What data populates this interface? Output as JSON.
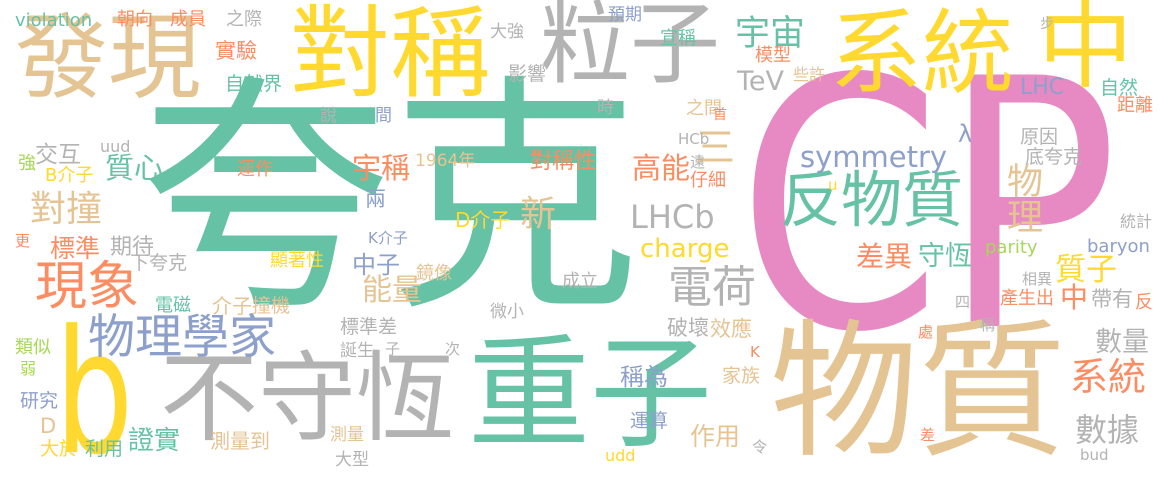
{
  "words": [
    {
      "text": "夸克",
      "color": "#66c2a5"
    },
    {
      "text": "CP",
      "color": "#e78ac3"
    },
    {
      "text": "物質",
      "color": "#e5c494"
    },
    {
      "text": "重子",
      "color": "#66c2a5"
    },
    {
      "text": "不守恆",
      "color": "#b3b3b3"
    },
    {
      "text": "b",
      "color": "#ffd92f"
    },
    {
      "text": "發現",
      "color": "#e5c494"
    },
    {
      "text": "對稱",
      "color": "#ffd92f"
    },
    {
      "text": "粒子",
      "color": "#b3b3b3"
    },
    {
      "text": "系統",
      "color": "#ffd92f"
    },
    {
      "text": "中",
      "color": "#ffd92f"
    },
    {
      "text": "反物質",
      "color": "#66c2a5"
    },
    {
      "text": "現象",
      "color": "#fc8d62"
    },
    {
      "text": "物理學家",
      "color": "#8da0cb"
    },
    {
      "text": "電荷",
      "color": "#b3b3b3"
    },
    {
      "text": "symmetry",
      "color": "#8da0cb"
    },
    {
      "text": "LHCb",
      "color": "#b3b3b3"
    },
    {
      "text": "charge",
      "color": "#ffd92f"
    },
    {
      "text": "TeV",
      "color": "#b3b3b3"
    },
    {
      "text": "宇宙",
      "color": "#66c2a5"
    },
    {
      "text": "對撞",
      "color": "#e5c494"
    },
    {
      "text": "交互",
      "color": "#b3b3b3"
    },
    {
      "text": "強",
      "color": "#a6d854"
    },
    {
      "text": "B介子",
      "color": "#ffd92f"
    },
    {
      "text": "質心",
      "color": "#66c2a5"
    },
    {
      "text": "標準",
      "color": "#fc8d62"
    },
    {
      "text": "期待",
      "color": "#b3b3b3"
    },
    {
      "text": "更",
      "color": "#fc8d62"
    },
    {
      "text": "下夸克",
      "color": "#b3b3b3"
    },
    {
      "text": "運作",
      "color": "#fc8d62"
    },
    {
      "text": "宇稱",
      "color": "#fc8d62"
    },
    {
      "text": "1964年",
      "color": "#e5c494"
    },
    {
      "text": "對稱性",
      "color": "#fc8d62"
    },
    {
      "text": "高能",
      "color": "#fc8d62"
    },
    {
      "text": "三",
      "color": "#e5c494"
    },
    {
      "text": "仔細",
      "color": "#fc8d62"
    },
    {
      "text": "物理",
      "color": "#e5c494"
    },
    {
      "text": "新",
      "color": "#e5c494"
    },
    {
      "text": "兩",
      "color": "#8da0cb"
    },
    {
      "text": "K介子",
      "color": "#8da0cb"
    },
    {
      "text": "中子",
      "color": "#8da0cb"
    },
    {
      "text": "能量",
      "color": "#e5c494"
    },
    {
      "text": "鏡像",
      "color": "#e5c494"
    },
    {
      "text": "介子",
      "color": "#e5c494"
    },
    {
      "text": "撞機",
      "color": "#e5c494"
    },
    {
      "text": "電磁",
      "color": "#66c2a5"
    },
    {
      "text": "D介子",
      "color": "#ffd92f"
    },
    {
      "text": "顯著性",
      "color": "#ffd92f"
    },
    {
      "text": "成立",
      "color": "#b3b3b3"
    },
    {
      "text": "守恆",
      "color": "#66c2a5"
    },
    {
      "text": "差異",
      "color": "#fc8d62"
    },
    {
      "text": "質子",
      "color": "#ffd92f"
    },
    {
      "text": "中",
      "color": "#fc8d62"
    },
    {
      "text": "帶有",
      "color": "#b3b3b3"
    },
    {
      "text": "反",
      "color": "#fc8d62"
    },
    {
      "text": "產生出",
      "color": "#fc8d62"
    },
    {
      "text": "相異",
      "color": "#b3b3b3"
    },
    {
      "text": "parity",
      "color": "#a6d854"
    },
    {
      "text": "baryon",
      "color": "#8da0cb"
    },
    {
      "text": "統計",
      "color": "#b3b3b3"
    },
    {
      "text": "底夸克",
      "color": "#b3b3b3"
    },
    {
      "text": "原因",
      "color": "#b3b3b3"
    },
    {
      "text": "距離",
      "color": "#fc8d62"
    },
    {
      "text": "自然",
      "color": "#66c2a5"
    },
    {
      "text": "λ",
      "color": "#8da0cb"
    },
    {
      "text": "LHC",
      "color": "#8da0cb"
    },
    {
      "text": "步",
      "color": "#b3b3b3"
    },
    {
      "text": "預期",
      "color": "#8da0cb"
    },
    {
      "text": "之際",
      "color": "#b3b3b3"
    },
    {
      "text": "成員",
      "color": "#fc8d62"
    },
    {
      "text": "朝向",
      "color": "#fc8d62"
    },
    {
      "text": "violation",
      "color": "#66c2a5"
    },
    {
      "text": "大強",
      "color": "#b3b3b3"
    },
    {
      "text": "宣稱",
      "color": "#66c2a5"
    },
    {
      "text": "模型",
      "color": "#fc8d62"
    },
    {
      "text": "些許",
      "color": "#e5c494"
    },
    {
      "text": "實驗",
      "color": "#fc8d62"
    },
    {
      "text": "自然界",
      "color": "#66c2a5"
    },
    {
      "text": "影響",
      "color": "#b3b3b3"
    },
    {
      "text": "之間",
      "color": "#e5c494"
    },
    {
      "text": "首",
      "color": "#fc8d62"
    },
    {
      "text": "時",
      "color": "#b3b3b3"
    },
    {
      "text": "HCb",
      "color": "#b3b3b3"
    },
    {
      "text": "遠",
      "color": "#b3b3b3"
    },
    {
      "text": "說",
      "color": "#b3b3b3"
    },
    {
      "text": "間",
      "color": "#8da0cb"
    },
    {
      "text": "uud",
      "color": "#b3b3b3"
    },
    {
      "text": "u",
      "color": "#ffd92f"
    },
    {
      "text": "四",
      "color": "#b3b3b3"
    },
    {
      "text": "稱",
      "color": "#b3b3b3"
    },
    {
      "text": "處",
      "color": "#fc8d62"
    },
    {
      "text": "K",
      "color": "#fc8d62"
    },
    {
      "text": "效應",
      "color": "#e5c494"
    },
    {
      "text": "破壞",
      "color": "#b3b3b3"
    },
    {
      "text": "微小",
      "color": "#b3b3b3"
    },
    {
      "text": "標準差",
      "color": "#b3b3b3"
    },
    {
      "text": "誕生",
      "color": "#b3b3b3"
    },
    {
      "text": "子",
      "color": "#b3b3b3"
    },
    {
      "text": "次",
      "color": "#b3b3b3"
    },
    {
      "text": "稱為",
      "color": "#8da0cb"
    },
    {
      "text": "家族",
      "color": "#e5c494"
    },
    {
      "text": "運算",
      "color": "#8da0cb"
    },
    {
      "text": "作用",
      "color": "#e5c494"
    },
    {
      "text": "令",
      "color": "#b3b3b3"
    },
    {
      "text": "差",
      "color": "#fc8d62"
    },
    {
      "text": "數據",
      "color": "#b3b3b3"
    },
    {
      "text": "數量",
      "color": "#b3b3b3"
    },
    {
      "text": "系統",
      "color": "#fc8d62"
    },
    {
      "text": "bud",
      "color": "#b3b3b3"
    },
    {
      "text": "udd",
      "color": "#ffd92f"
    },
    {
      "text": "大型",
      "color": "#b3b3b3"
    },
    {
      "text": "測量",
      "color": "#e5c494"
    },
    {
      "text": "測量到",
      "color": "#e5c494"
    },
    {
      "text": "證實",
      "color": "#66c2a5"
    },
    {
      "text": "利用",
      "color": "#66c2a5"
    },
    {
      "text": "大於",
      "color": "#ffd92f"
    },
    {
      "text": "研究",
      "color": "#8da0cb"
    },
    {
      "text": "D",
      "color": "#e5c494"
    },
    {
      "text": "弱",
      "color": "#a6d854"
    },
    {
      "text": "類似",
      "color": "#a6d854"
    }
  ]
}
